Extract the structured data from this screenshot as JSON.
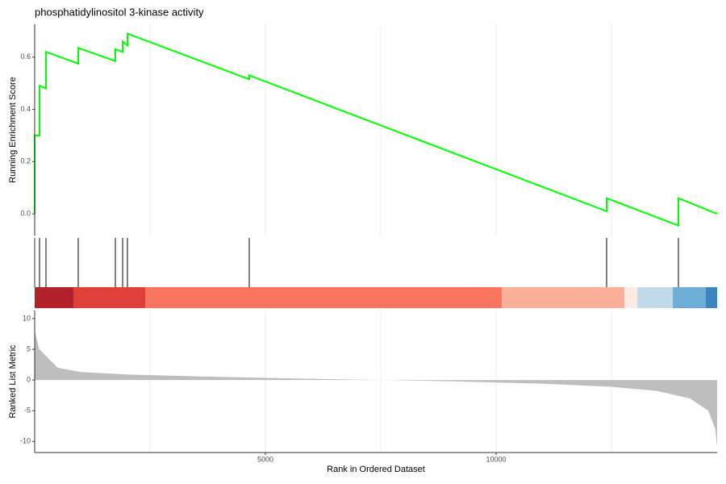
{
  "chart_data": [
    {
      "type": "line",
      "title": "phosphatidylinositol 3-kinase activity",
      "ylabel": "Running Enrichment Score",
      "x": [
        0,
        0,
        105,
        105,
        245,
        245,
        944,
        944,
        1748,
        1748,
        1906,
        1906,
        2010,
        2010,
        4650,
        4650,
        12395,
        12395,
        13951,
        13951,
        14790
      ],
      "series": [
        {
          "color": "#00ff00",
          "values": [
            0,
            0.3,
            0.3,
            0.49,
            0.48,
            0.62,
            0.575,
            0.635,
            0.585,
            0.63,
            0.62,
            0.66,
            0.645,
            0.69,
            0.515,
            0.53,
            0.01,
            0.06,
            -0.045,
            0.06,
            0.0
          ]
        }
      ],
      "xlim": [
        0,
        14790
      ],
      "ylim": [
        -0.083,
        0.726
      ],
      "yticks": [
        {
          "value": 0,
          "label": "0.0"
        },
        0.2,
        0.4,
        0.6
      ],
      "grid_x": [
        2500,
        5000,
        7500,
        10000,
        12500
      ]
    },
    {
      "type": "rug",
      "x": [
        0,
        105,
        245,
        944,
        1748,
        1906,
        2010,
        4650,
        12395,
        13951
      ],
      "tick_color": "#000000",
      "bands": [
        {
          "start": 0,
          "end": 839,
          "color": "#b2222b"
        },
        {
          "start": 839,
          "end": 2395,
          "color": "#e0403a"
        },
        {
          "start": 2395,
          "end": 10122,
          "color": "#f8765f"
        },
        {
          "start": 10122,
          "end": 12780,
          "color": "#fcb09a"
        },
        {
          "start": 12780,
          "end": 13059,
          "color": "#fdeae3"
        },
        {
          "start": 13059,
          "end": 13829,
          "color": "#c3dbe9"
        },
        {
          "start": 13829,
          "end": 14545,
          "color": "#6eaed6"
        },
        {
          "start": 14545,
          "end": 14790,
          "color": "#3a87c0"
        }
      ],
      "xlim": [
        0,
        14790
      ]
    },
    {
      "type": "area",
      "xlabel": "Rank in Ordered Dataset",
      "ylabel": "Ranked List Metric",
      "color": "#bebebe",
      "x": [
        0,
        100,
        500,
        1000,
        2000,
        4000,
        6000,
        7500,
        9000,
        11000,
        12500,
        13500,
        14200,
        14600,
        14750,
        14790
      ],
      "values": [
        8,
        5,
        2,
        1.3,
        0.9,
        0.5,
        0.2,
        0,
        -0.2,
        -0.6,
        -1.1,
        -1.8,
        -3,
        -5,
        -8,
        -11
      ],
      "xlim": [
        0,
        14790
      ],
      "xticks": [
        5000,
        10000
      ],
      "ylim": [
        -11.8,
        11.3
      ],
      "yticks": [
        -10,
        -5,
        0,
        5,
        10
      ],
      "grid_x": [
        2500,
        5000,
        7500,
        10000,
        12500
      ]
    }
  ]
}
